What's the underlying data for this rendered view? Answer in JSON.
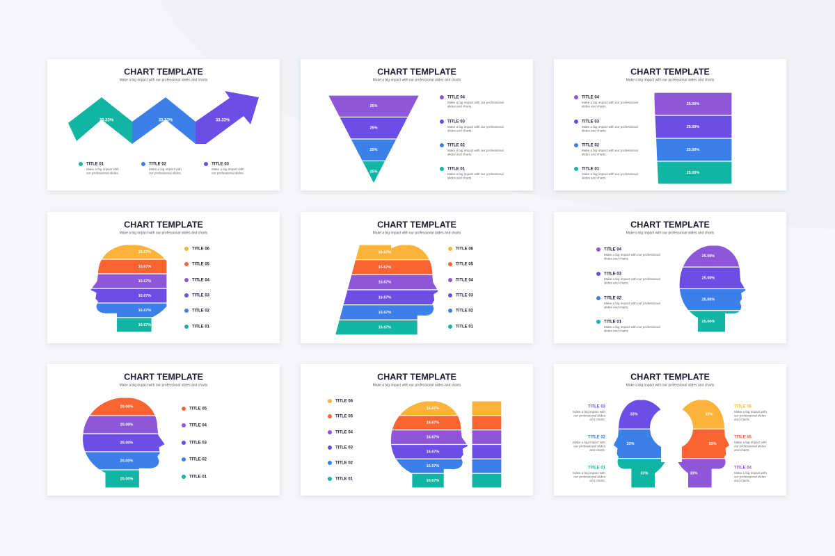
{
  "slides": [
    {
      "title": "CHART TEMPLATE",
      "subtitle": "Make a big impact with our professional slides and charts",
      "values": [
        "33.33%",
        "33.33%",
        "33.33%"
      ],
      "items": [
        {
          "label": "TITLE 01",
          "text": [
            "Make a big impact with",
            "our professional slides."
          ]
        },
        {
          "label": "TITLE 02",
          "text": [
            "Make a big impact with",
            "our professional slides."
          ]
        },
        {
          "label": "TITLE 03",
          "text": [
            "Make a big impact with",
            "our professional slides."
          ]
        }
      ]
    },
    {
      "title": "CHART TEMPLATE",
      "subtitle": "Make a big impact with our professional slides and charts",
      "values": [
        "25%",
        "25%",
        "25%",
        "25%"
      ],
      "items": [
        {
          "label": "TITLE 04",
          "text": [
            "Make a big impact with our professional",
            "slides and charts."
          ]
        },
        {
          "label": "TITLE 03",
          "text": [
            "Make a big impact with our professional",
            "slides and charts."
          ]
        },
        {
          "label": "TITLE 02",
          "text": [
            "Make a big impact with our professional",
            "slides and charts."
          ]
        },
        {
          "label": "TITLE 01",
          "text": [
            "Make a big impact with our professional",
            "slides and charts."
          ]
        }
      ]
    },
    {
      "title": "CHART TEMPLATE",
      "subtitle": "Make a big impact with our professional slides and charts",
      "values": [
        "25.00%",
        "25.00%",
        "25.00%",
        "25.00%"
      ],
      "items": [
        {
          "label": "TITLE 04",
          "text": [
            "Make a big impact with our professional",
            "slides and charts."
          ]
        },
        {
          "label": "TITLE 03",
          "text": [
            "Make a big impact with our professional",
            "slides and charts."
          ]
        },
        {
          "label": "TITLE 02",
          "text": [
            "Make a big impact with our professional",
            "slides and charts."
          ]
        },
        {
          "label": "TITLE 01",
          "text": [
            "Make a big impact with our professional",
            "slides and charts."
          ]
        }
      ]
    },
    {
      "title": "CHART TEMPLATE",
      "subtitle": "Make a big impact with our professional slides and charts",
      "values": [
        "16.67%",
        "16.67%",
        "16.67%",
        "16.67%",
        "16.67%",
        "16.67%"
      ],
      "items": [
        {
          "label": "TITLE 06"
        },
        {
          "label": "TITLE 05"
        },
        {
          "label": "TITLE 04"
        },
        {
          "label": "TITLE 03"
        },
        {
          "label": "TITLE 02"
        },
        {
          "label": "TITLE 01"
        }
      ]
    },
    {
      "title": "CHART TEMPLATE",
      "subtitle": "Make a big impact with our professional slides and charts",
      "values": [
        "16.67%",
        "16.67%",
        "16.67%",
        "16.67%",
        "16.67%",
        "16.67%"
      ],
      "items": [
        {
          "label": "TITLE 06"
        },
        {
          "label": "TITLE 05"
        },
        {
          "label": "TITLE 04"
        },
        {
          "label": "TITLE 03"
        },
        {
          "label": "TITLE 02"
        },
        {
          "label": "TITLE 01"
        }
      ]
    },
    {
      "title": "CHART TEMPLATE",
      "subtitle": "Make a big impact with our professional slides and charts",
      "values": [
        "25.00%",
        "25.00%",
        "25.00%",
        "25.00%"
      ],
      "items": [
        {
          "label": "TITLE 04",
          "text": [
            "Make a big impact with our professional",
            "slides and charts."
          ]
        },
        {
          "label": "TITLE 03",
          "text": [
            "Make a big impact with our professional",
            "slides and charts."
          ]
        },
        {
          "label": "TITLE 02",
          "text": [
            "Make a big impact with our professional",
            "slides and charts."
          ]
        },
        {
          "label": "TITLE 01",
          "text": [
            "Make a big impact with our professional",
            "slides and charts."
          ]
        }
      ]
    },
    {
      "title": "CHART TEMPLATE",
      "subtitle": "Make a big impact with our professional slides and charts",
      "values": [
        "20.00%",
        "20.00%",
        "20.00%",
        "20.00%",
        "20.00%"
      ],
      "items": [
        {
          "label": "TITLE 05"
        },
        {
          "label": "TITLE 04"
        },
        {
          "label": "TITLE 03"
        },
        {
          "label": "TITLE 02"
        },
        {
          "label": "TITLE 01"
        }
      ]
    },
    {
      "title": "CHART TEMPLATE",
      "subtitle": "Make a big impact with our professional slides and charts",
      "values": [
        "16.67%",
        "16.67%",
        "16.67%",
        "16.67%",
        "16.67%",
        "16.67%"
      ],
      "items": [
        {
          "label": "TITLE 06"
        },
        {
          "label": "TITLE 05"
        },
        {
          "label": "TITLE 04"
        },
        {
          "label": "TITLE 03"
        },
        {
          "label": "TITLE 02"
        },
        {
          "label": "TITLE 01"
        }
      ]
    },
    {
      "title": "CHART TEMPLATE",
      "subtitle": "Make a big impact with our professional slides and charts",
      "values": [
        "33%",
        "33%",
        "33%",
        "33%",
        "33%",
        "33%"
      ],
      "items": [
        {
          "label": "TITLE 03",
          "text": [
            "Make a big impact with",
            "our professional slides",
            "and charts."
          ]
        },
        {
          "label": "TITLE 02",
          "text": [
            "Make a big impact with",
            "our professional slides",
            "and charts."
          ]
        },
        {
          "label": "TITLE 01",
          "text": [
            "Make a big impact with",
            "our professional slides",
            "and charts."
          ]
        },
        {
          "label": "TITLE 06",
          "text": [
            "Make a big impact with",
            "our professional slides",
            "and charts."
          ]
        },
        {
          "label": "TITLE 05",
          "text": [
            "Make a big impact with",
            "our professional slides",
            "and charts."
          ]
        },
        {
          "label": "TITLE 04",
          "text": [
            "Make a big impact with",
            "our professional slides",
            "and charts."
          ]
        }
      ]
    }
  ]
}
